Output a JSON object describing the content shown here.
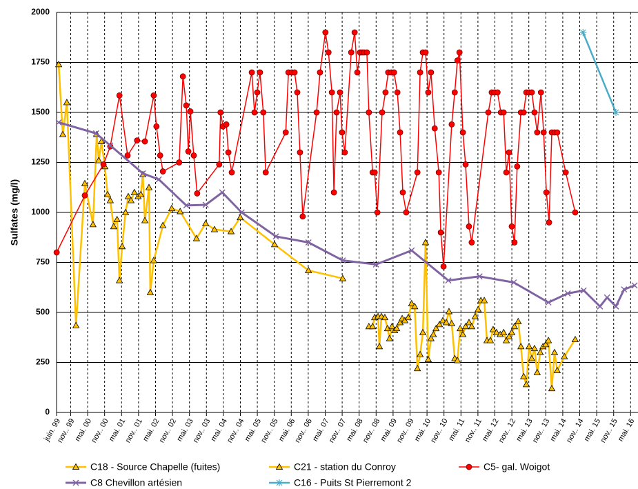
{
  "chart_data": {
    "type": "line",
    "y_label": "Sulfates (mg/l)",
    "xlim": [
      1999.417,
      2016.55
    ],
    "ylim": [
      0,
      2000
    ],
    "yticks": [
      0,
      250,
      500,
      750,
      1000,
      1250,
      1500,
      1750,
      2000
    ],
    "xticks": [
      {
        "value": 1999.417,
        "label": "juin. 99"
      },
      {
        "value": 1999.833,
        "label": "nov.. 99"
      },
      {
        "value": 2000.333,
        "label": "mai. 00"
      },
      {
        "value": 2000.833,
        "label": "nov.. 00"
      },
      {
        "value": 2001.333,
        "label": "mai. 01"
      },
      {
        "value": 2001.833,
        "label": "nov.. 01"
      },
      {
        "value": 2002.333,
        "label": "mai. 02"
      },
      {
        "value": 2002.833,
        "label": "nov.. 02"
      },
      {
        "value": 2003.333,
        "label": "mai. 03"
      },
      {
        "value": 2003.833,
        "label": "nov.. 03"
      },
      {
        "value": 2004.333,
        "label": "mai. 04"
      },
      {
        "value": 2004.833,
        "label": "nov.. 04"
      },
      {
        "value": 2005.333,
        "label": "mai. 05"
      },
      {
        "value": 2005.833,
        "label": "nov.. 05"
      },
      {
        "value": 2006.333,
        "label": "mai. 06"
      },
      {
        "value": 2006.833,
        "label": "nov.. 06"
      },
      {
        "value": 2007.333,
        "label": "mai. 07"
      },
      {
        "value": 2007.833,
        "label": "nov.. 07"
      },
      {
        "value": 2008.333,
        "label": "mai. 08"
      },
      {
        "value": 2008.833,
        "label": "nov.. 08"
      },
      {
        "value": 2009.333,
        "label": "mai. 09"
      },
      {
        "value": 2009.833,
        "label": "nov.. 09"
      },
      {
        "value": 2010.333,
        "label": "mai. 10"
      },
      {
        "value": 2010.833,
        "label": "nov.. 10"
      },
      {
        "value": 2011.333,
        "label": "mai. 11"
      },
      {
        "value": 2011.833,
        "label": "nov.. 11"
      },
      {
        "value": 2012.333,
        "label": "mai. 12"
      },
      {
        "value": 2012.833,
        "label": "nov.. 12"
      },
      {
        "value": 2013.333,
        "label": "mai. 13"
      },
      {
        "value": 2013.833,
        "label": "nov.. 13"
      },
      {
        "value": 2014.333,
        "label": "mai. 14"
      },
      {
        "value": 2014.833,
        "label": "nov.. 14"
      },
      {
        "value": 2015.333,
        "label": "mai. 15"
      },
      {
        "value": 2015.833,
        "label": "nov.. 15"
      },
      {
        "value": 2016.333,
        "label": "mai. 16"
      }
    ],
    "grid": true,
    "series": [
      {
        "name": "C18 - Source Chapelle (fuites)",
        "color": "#FFC000",
        "marker": "triangle",
        "x": [
          1999.48,
          1999.6,
          1999.72,
          1999.99,
          2000.25,
          2000.49,
          2000.6,
          2000.66,
          2000.74,
          2000.84,
          2000.92,
          2001.0,
          2001.1,
          2001.2,
          2001.27,
          2001.35,
          2001.45,
          2001.53,
          2001.61,
          2001.71,
          2001.82,
          2001.9,
          2001.96,
          2002.02,
          2002.14,
          2002.18,
          2002.28,
          2002.55,
          2002.81,
          2003.06,
          2003.54,
          2003.81,
          2004.07,
          2004.56,
          2004.83,
          2005.84,
          2006.84,
          2007.85
        ],
        "values": [
          1740,
          1390,
          1550,
          435,
          1145,
          940,
          1390,
          1260,
          1355,
          1230,
          1090,
          1060,
          930,
          965,
          660,
          830,
          1000,
          1080,
          1060,
          1100,
          1080,
          1090,
          1190,
          960,
          1125,
          600,
          760,
          935,
          1020,
          1005,
          870,
          945,
          915,
          905,
          975,
          840,
          710,
          670
        ]
      },
      {
        "name": "C21 - station du Conroy",
        "color": "#FFC000",
        "marker": "triangle",
        "x": [
          2008.62,
          2008.73,
          2008.79,
          2008.89,
          2008.93,
          2008.99,
          2009.09,
          2009.17,
          2009.23,
          2009.3,
          2009.38,
          2009.44,
          2009.54,
          2009.6,
          2009.68,
          2009.78,
          2009.88,
          2009.97,
          2010.05,
          2010.13,
          2010.21,
          2010.29,
          2010.37,
          2010.45,
          2010.52,
          2010.6,
          2010.7,
          2010.8,
          2010.9,
          2010.98,
          2011.06,
          2011.15,
          2011.23,
          2011.31,
          2011.39,
          2011.47,
          2011.57,
          2011.65,
          2011.75,
          2011.84,
          2011.92,
          2012.02,
          2012.1,
          2012.2,
          2012.28,
          2012.38,
          2012.49,
          2012.59,
          2012.67,
          2012.75,
          2012.83,
          2012.91,
          2013.02,
          2013.1,
          2013.18,
          2013.26,
          2013.34,
          2013.42,
          2013.5,
          2013.58,
          2013.67,
          2013.75,
          2013.83,
          2013.91,
          2014.01,
          2014.09,
          2014.17,
          2014.38,
          2014.7
        ],
        "values": [
          430,
          430,
          475,
          480,
          330,
          480,
          475,
          420,
          370,
          430,
          410,
          420,
          450,
          470,
          460,
          475,
          545,
          530,
          220,
          290,
          400,
          850,
          265,
          370,
          390,
          420,
          440,
          460,
          450,
          505,
          445,
          270,
          260,
          420,
          390,
          430,
          450,
          430,
          480,
          515,
          560,
          560,
          360,
          360,
          415,
          400,
          390,
          400,
          360,
          380,
          400,
          430,
          455,
          330,
          180,
          140,
          330,
          270,
          320,
          200,
          300,
          330,
          340,
          360,
          120,
          300,
          210,
          280,
          365
        ]
      },
      {
        "name": "C5- gal. Woigot",
        "color": "#FF0000",
        "marker": "circle",
        "x": [
          1999.42,
          2000.25,
          2000.8,
          2001.0,
          2001.27,
          2001.51,
          2001.79,
          2002.02,
          2002.28,
          2002.36,
          2002.47,
          2002.55,
          2003.03,
          2003.14,
          2003.24,
          2003.3,
          2003.36,
          2003.46,
          2003.56,
          2004.21,
          2004.25,
          2004.32,
          2004.42,
          2004.48,
          2004.58,
          2005.17,
          2005.25,
          2005.33,
          2005.41,
          2005.51,
          2005.58,
          2006.17,
          2006.25,
          2006.35,
          2006.43,
          2006.51,
          2006.59,
          2006.67,
          2007.08,
          2007.18,
          2007.34,
          2007.43,
          2007.53,
          2007.59,
          2007.67,
          2007.77,
          2007.83,
          2007.91,
          2008.1,
          2008.2,
          2008.28,
          2008.36,
          2008.42,
          2008.48,
          2008.56,
          2008.62,
          2008.73,
          2008.79,
          2008.87,
          2009.01,
          2009.11,
          2009.19,
          2009.28,
          2009.36,
          2009.46,
          2009.54,
          2009.62,
          2009.72,
          2010.05,
          2010.13,
          2010.21,
          2010.29,
          2010.37,
          2010.45,
          2010.56,
          2010.68,
          2010.74,
          2010.82,
          2011.06,
          2011.15,
          2011.23,
          2011.29,
          2011.39,
          2011.47,
          2011.57,
          2011.65,
          2012.14,
          2012.24,
          2012.32,
          2012.41,
          2012.51,
          2012.59,
          2012.67,
          2012.75,
          2012.83,
          2012.91,
          2012.99,
          2013.1,
          2013.18,
          2013.26,
          2013.34,
          2013.42,
          2013.5,
          2013.58,
          2013.69,
          2013.77,
          2013.85,
          2013.93,
          2014.01,
          2014.09,
          2014.17,
          2014.42,
          2014.7
        ],
        "values": [
          800,
          1085,
          1240,
          1330,
          1585,
          1285,
          1360,
          1355,
          1585,
          1430,
          1285,
          1205,
          1250,
          1680,
          1535,
          1305,
          1505,
          1285,
          1095,
          1240,
          1500,
          1430,
          1440,
          1300,
          1200,
          1700,
          1500,
          1600,
          1700,
          1500,
          1200,
          1400,
          1700,
          1700,
          1700,
          1600,
          1300,
          980,
          1500,
          1700,
          1900,
          1800,
          1600,
          1100,
          1500,
          1600,
          1400,
          1300,
          1800,
          1900,
          1700,
          1800,
          1800,
          1800,
          1800,
          1500,
          1200,
          1200,
          1000,
          1500,
          1600,
          1700,
          1700,
          1700,
          1600,
          1400,
          1100,
          1000,
          1200,
          1700,
          1800,
          1800,
          1600,
          1700,
          1420,
          1200,
          900,
          730,
          1440,
          1600,
          1760,
          1800,
          1400,
          1240,
          930,
          850,
          1500,
          1600,
          1600,
          1600,
          1500,
          1500,
          1200,
          1300,
          930,
          850,
          1230,
          1500,
          1500,
          1600,
          1600,
          1600,
          1500,
          1400,
          1600,
          1400,
          1100,
          950,
          1400,
          1400,
          1400,
          1200,
          1000
        ]
      },
      {
        "name": "C8 Chevillon artésien",
        "color": "#8064A2",
        "marker": "x",
        "x": [
          1999.48,
          2000.58,
          2001.0,
          2001.96,
          2002.43,
          2003.24,
          2003.81,
          2004.3,
          2004.87,
          2005.88,
          2006.84,
          2007.85,
          2008.83,
          2009.88,
          2010.96,
          2011.88,
          2012.89,
          2013.91,
          2014.48,
          2014.95,
          2015.43,
          2015.64,
          2015.9,
          2016.14,
          2016.45
        ],
        "values": [
          1450,
          1395,
          1335,
          1195,
          1165,
          1035,
          1038,
          1100,
          1000,
          880,
          850,
          760,
          740,
          810,
          660,
          680,
          650,
          550,
          595,
          610,
          530,
          575,
          530,
          615,
          635
        ]
      },
      {
        "name": "C16 - Puits St Pierremont 2",
        "color": "#4BACC6",
        "marker": "star",
        "x": [
          2014.93,
          2015.9
        ],
        "values": [
          1900,
          1500
        ]
      }
    ]
  }
}
